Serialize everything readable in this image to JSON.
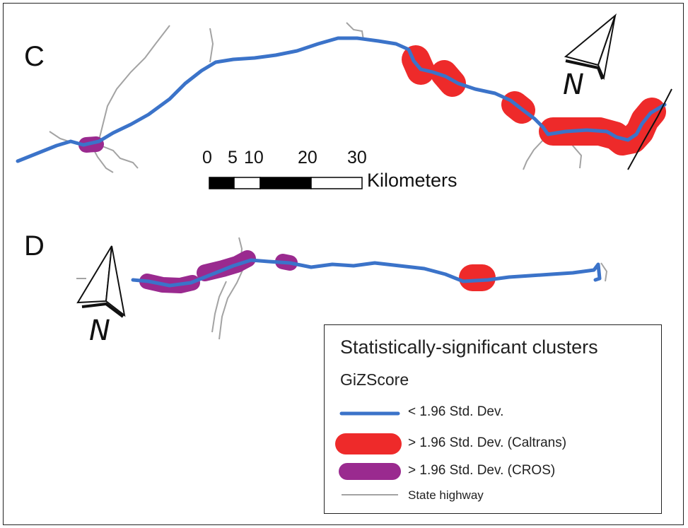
{
  "panels": {
    "c_label": "C",
    "d_label": "D"
  },
  "north_arrow": {
    "label": "N"
  },
  "scale_bar": {
    "ticks": [
      "0",
      "5",
      "10",
      "20",
      "30"
    ],
    "unit": "Kilometers"
  },
  "legend": {
    "title": "Statistically-significant clusters",
    "subtitle": "GiZScore",
    "items": [
      {
        "label": "< 1.96 Std. Dev.",
        "symbol": "blue-line",
        "color": "#3b73c9"
      },
      {
        "label": "> 1.96 Std. Dev. (Caltrans)",
        "symbol": "red-band",
        "color": "#ee2a2a"
      },
      {
        "label": "> 1.96 Std. Dev. (CROS)",
        "symbol": "purple-band",
        "color": "#9a2a8f"
      },
      {
        "label": "State highway",
        "symbol": "gray-line",
        "color": "#a3a3a3"
      }
    ]
  },
  "colors": {
    "route": "#3b73c9",
    "caltrans_cluster": "#ee2a2a",
    "cros_cluster": "#9a2a8f",
    "state_highway": "#a3a3a3"
  }
}
